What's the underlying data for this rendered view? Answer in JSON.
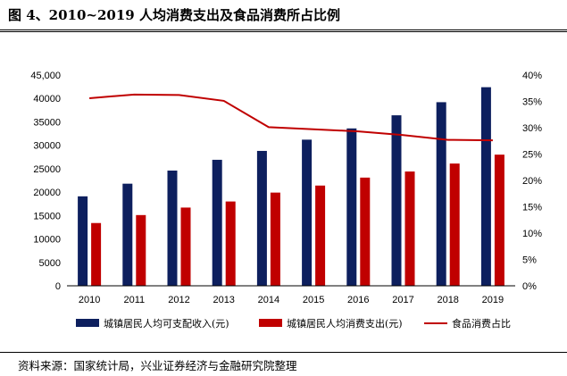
{
  "title": "图 4、2010~2019 人均消费支出及食品消费所占比例",
  "source": "资料来源：国家统计局，兴业证券经济与金融研究院整理",
  "chart_data": {
    "type": "bar",
    "categories": [
      "2010",
      "2011",
      "2012",
      "2013",
      "2014",
      "2015",
      "2016",
      "2017",
      "2018",
      "2019"
    ],
    "series": [
      {
        "name": "城镇居民人均可支配收入(元)",
        "type": "bar",
        "axis": "left",
        "color": "#0d1f5e",
        "values": [
          19100,
          21800,
          24600,
          26900,
          28800,
          31200,
          33600,
          36400,
          39200,
          42400
        ]
      },
      {
        "name": "城镇居民人均消费支出(元)",
        "type": "bar",
        "axis": "left",
        "color": "#c00000",
        "values": [
          13400,
          15100,
          16700,
          18000,
          19900,
          21400,
          23100,
          24400,
          26100,
          28000
        ]
      },
      {
        "name": "食品消费占比",
        "type": "line",
        "axis": "right",
        "color": "#c00000",
        "values": [
          35.6,
          36.3,
          36.2,
          35.1,
          30.1,
          29.7,
          29.3,
          28.6,
          27.7,
          27.6
        ]
      }
    ],
    "y_left": {
      "min": 0,
      "max": 45000,
      "step": 5000,
      "tick_labels": [
        "0",
        "5000",
        "10000",
        "15000",
        "20000",
        "25000",
        "30000",
        "35000",
        "40000",
        "45,000"
      ]
    },
    "y_right": {
      "min": 0,
      "max": 40,
      "step": 5,
      "tick_labels": [
        "0%",
        "5%",
        "10%",
        "15%",
        "20%",
        "25%",
        "30%",
        "35%",
        "40%"
      ]
    },
    "grid": false,
    "legend_position": "bottom"
  }
}
